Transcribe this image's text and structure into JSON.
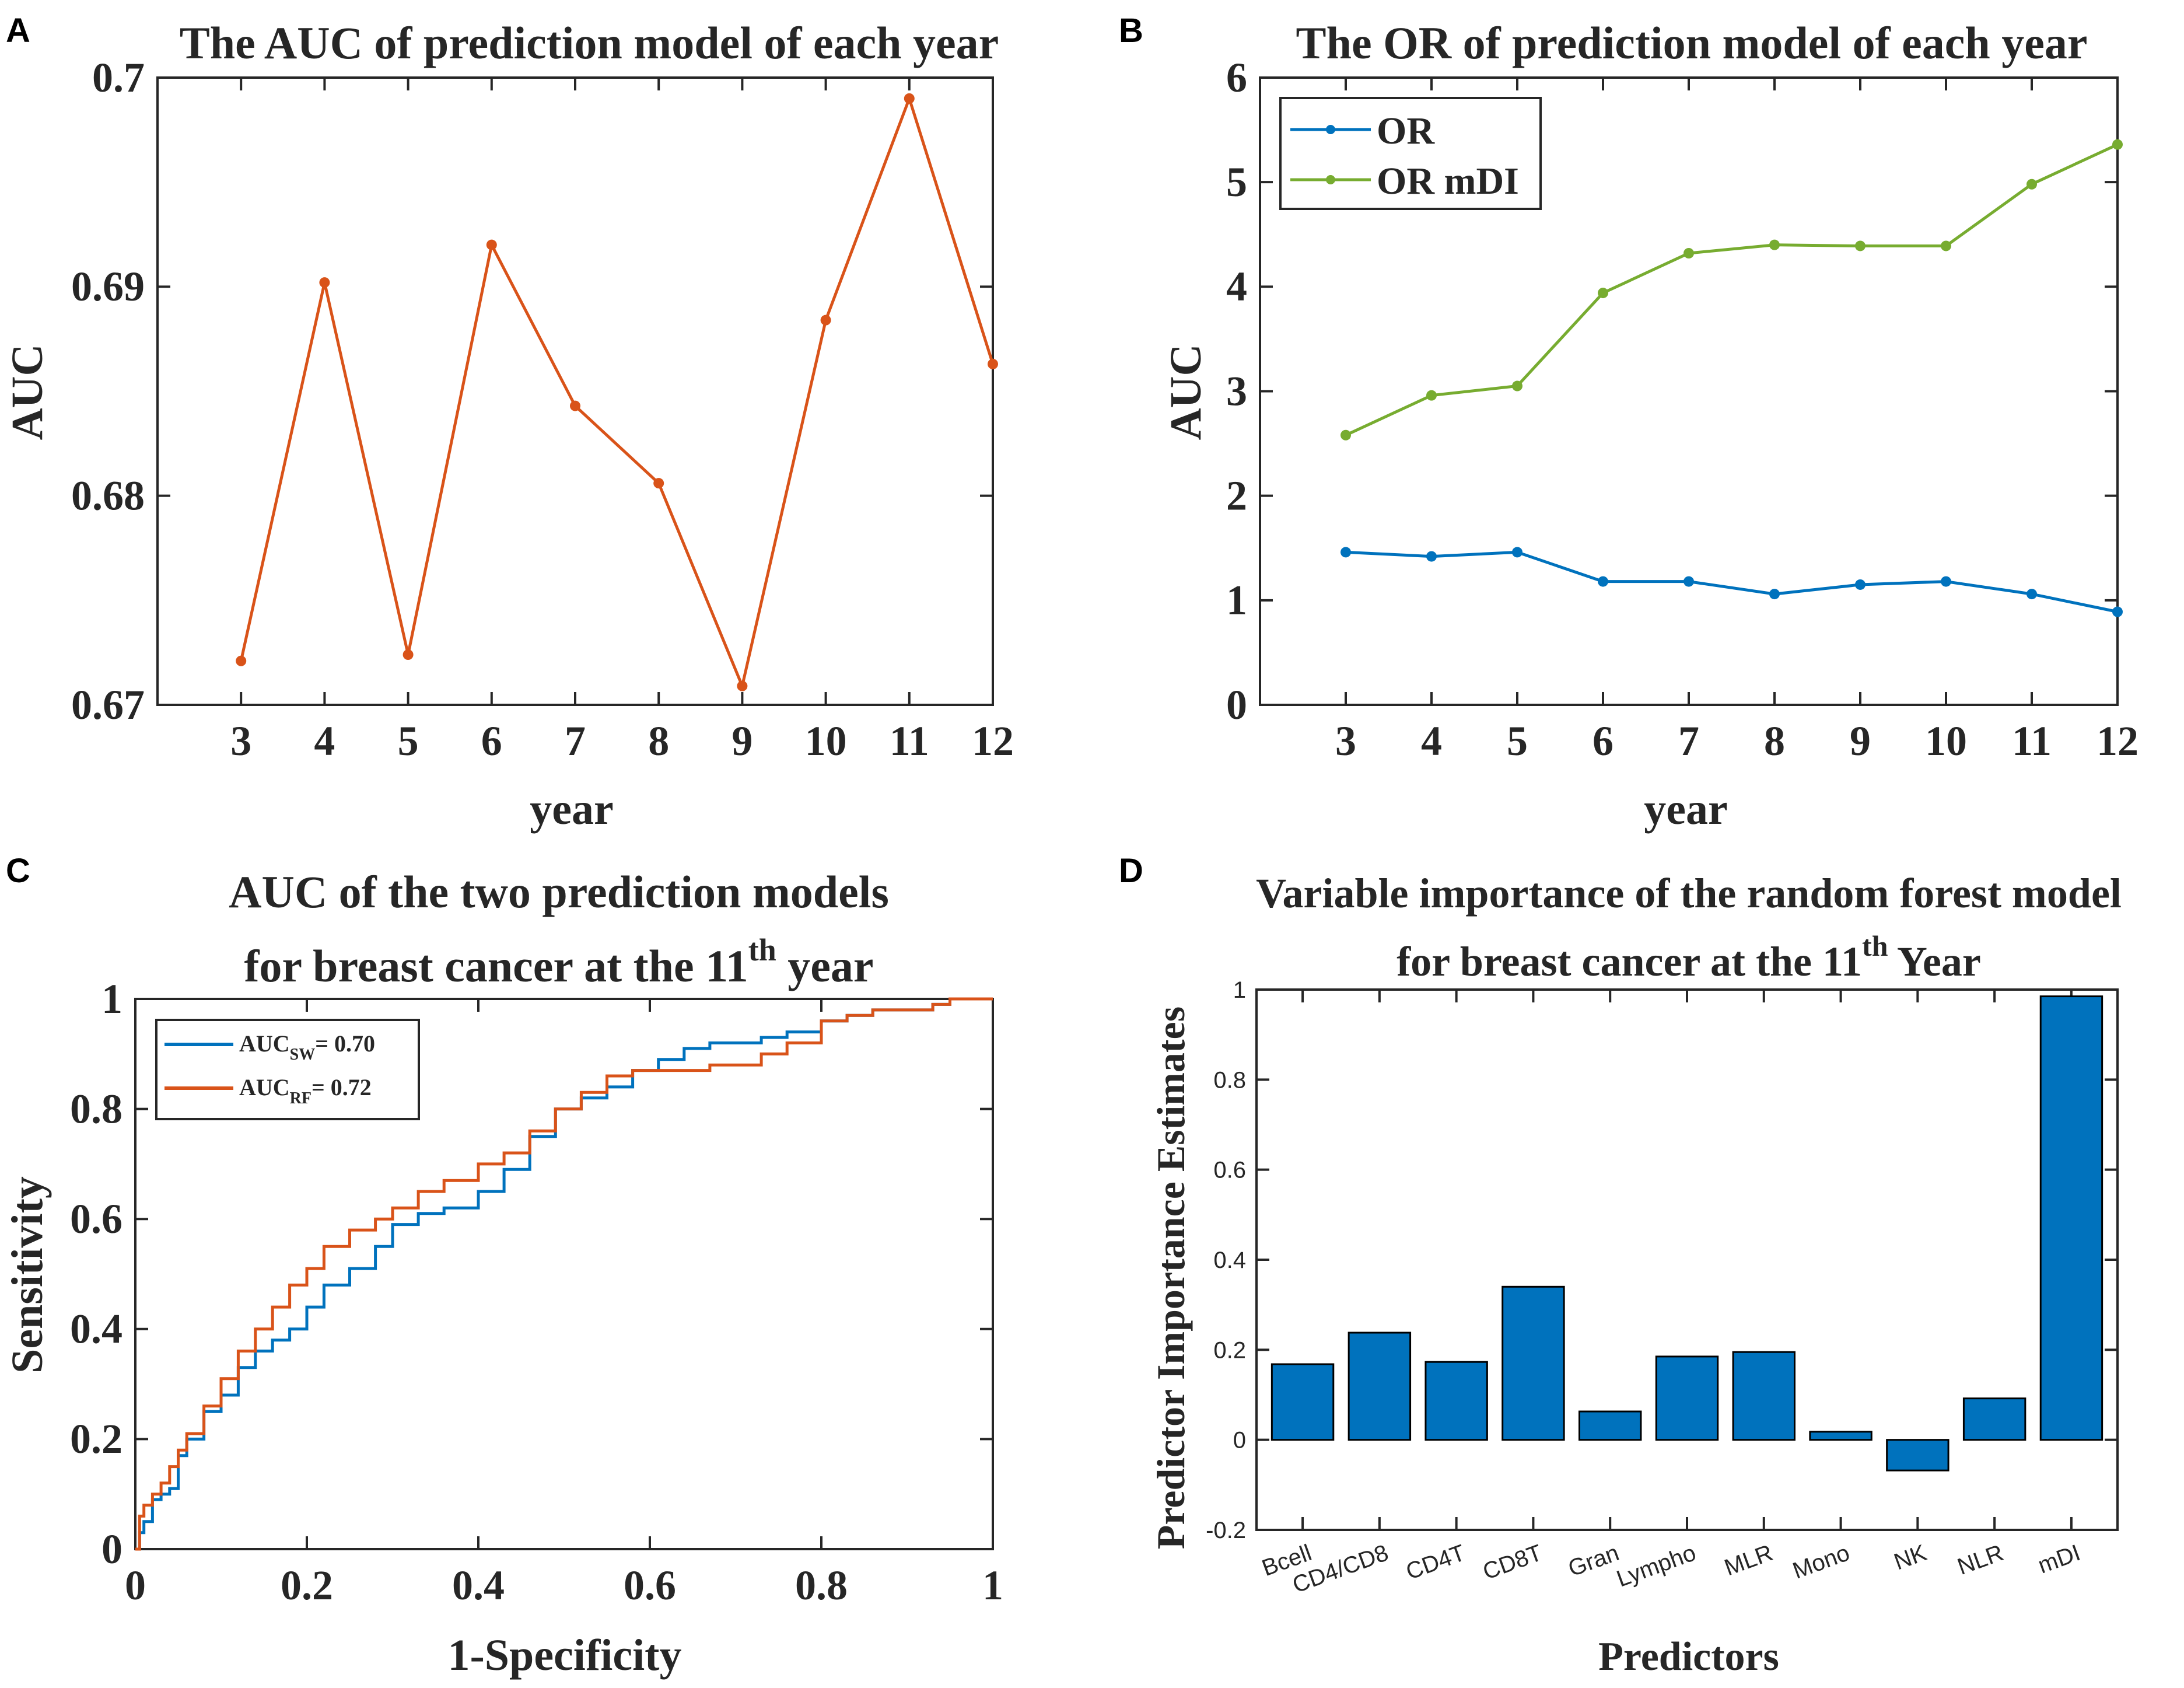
{
  "panels": {
    "A": {
      "label": "A",
      "chart_data": {
        "type": "line",
        "title": "The AUC of prediction model of each year",
        "xlabel": "year",
        "ylabel": "AUC",
        "x": [
          3,
          4,
          5,
          6,
          7,
          8,
          9,
          10,
          11,
          12
        ],
        "xticklabels": [
          "3",
          "4",
          "5",
          "6",
          "7",
          "8",
          "9",
          "10",
          "11",
          "12"
        ],
        "xlim": [
          2,
          12
        ],
        "ylim": [
          0.67,
          0.7
        ],
        "yticks": [
          0.67,
          0.68,
          0.69,
          0.7
        ],
        "yticklabels": [
          "0.67",
          "0.68",
          "0.69",
          "0.7"
        ],
        "grid": false,
        "series": [
          {
            "name": "AUC",
            "color": "#d95319",
            "values": [
              0.6721,
              0.6902,
              0.6724,
              0.692,
              0.6843,
              0.6806,
              0.6709,
              0.6884,
              0.699,
              0.6863
            ]
          }
        ]
      }
    },
    "B": {
      "label": "B",
      "chart_data": {
        "type": "line",
        "title": "The OR of prediction model of each year",
        "xlabel": "year",
        "ylabel": "AUC",
        "x": [
          3,
          4,
          5,
          6,
          7,
          8,
          9,
          10,
          11,
          12
        ],
        "xticklabels": [
          "3",
          "4",
          "5",
          "6",
          "7",
          "8",
          "9",
          "10",
          "11",
          "12"
        ],
        "xlim": [
          2,
          12
        ],
        "ylim": [
          0,
          6
        ],
        "yticks": [
          0,
          1,
          2,
          3,
          4,
          5,
          6
        ],
        "yticklabels": [
          "0",
          "1",
          "2",
          "3",
          "4",
          "5",
          "6"
        ],
        "grid": false,
        "legend_position": "top-left",
        "series": [
          {
            "name": "OR",
            "color": "#0072bd",
            "values": [
              1.46,
              1.42,
              1.46,
              1.18,
              1.18,
              1.06,
              1.15,
              1.18,
              1.06,
              0.89
            ]
          },
          {
            "name": "OR mDI",
            "color": "#77ac30",
            "values": [
              2.58,
              2.96,
              3.05,
              3.94,
              4.32,
              4.4,
              4.39,
              4.39,
              4.98,
              5.36
            ]
          }
        ]
      }
    },
    "C": {
      "label": "C",
      "chart_data": {
        "type": "line",
        "title_line1": "AUC of the two prediction models",
        "title_line2_pre": "for breast cancer at the 11",
        "title_line2_sup": "th",
        "title_line2_post": "year",
        "xlabel": "1-Specificity",
        "ylabel": "Sensitivity",
        "xlim": [
          0,
          1
        ],
        "ylim": [
          0,
          1
        ],
        "xticks": [
          0,
          0.2,
          0.4,
          0.6,
          0.8,
          1
        ],
        "xticklabels": [
          "0",
          "0.2",
          "0.4",
          "0.6",
          "0.8",
          "1"
        ],
        "yticks": [
          0,
          0.2,
          0.4,
          0.6,
          0.8,
          1
        ],
        "yticklabels": [
          "0",
          "0.2",
          "0.4",
          "0.6",
          "0.8",
          "1"
        ],
        "grid": false,
        "legend_position": "top-left",
        "series": [
          {
            "name": "AUC_SW = 0.70",
            "legend_main": "AUC",
            "legend_sub": "SW",
            "legend_tail": "= 0.70",
            "color": "#0072bd",
            "x": [
              0,
              0.005,
              0.01,
              0.02,
              0.03,
              0.04,
              0.05,
              0.06,
              0.08,
              0.1,
              0.12,
              0.14,
              0.16,
              0.18,
              0.2,
              0.22,
              0.25,
              0.28,
              0.3,
              0.33,
              0.36,
              0.4,
              0.43,
              0.46,
              0.49,
              0.52,
              0.55,
              0.58,
              0.61,
              0.64,
              0.67,
              0.7,
              0.73,
              0.76,
              0.8,
              0.83,
              0.86,
              0.9,
              0.93,
              0.95,
              1.0
            ],
            "y": [
              0,
              0.03,
              0.05,
              0.09,
              0.1,
              0.11,
              0.17,
              0.2,
              0.25,
              0.28,
              0.33,
              0.36,
              0.38,
              0.4,
              0.44,
              0.48,
              0.51,
              0.55,
              0.59,
              0.61,
              0.62,
              0.65,
              0.69,
              0.75,
              0.8,
              0.82,
              0.84,
              0.87,
              0.89,
              0.91,
              0.92,
              0.92,
              0.93,
              0.94,
              0.96,
              0.97,
              0.98,
              0.98,
              0.99,
              1.0,
              1.0
            ]
          },
          {
            "name": "AUC_RF = 0.72",
            "legend_main": "AUC",
            "legend_sub": "RF",
            "legend_tail": "= 0.72",
            "color": "#d95319",
            "x": [
              0,
              0.005,
              0.01,
              0.02,
              0.03,
              0.04,
              0.05,
              0.06,
              0.08,
              0.1,
              0.12,
              0.14,
              0.16,
              0.18,
              0.2,
              0.22,
              0.25,
              0.28,
              0.3,
              0.33,
              0.36,
              0.4,
              0.43,
              0.46,
              0.49,
              0.52,
              0.55,
              0.58,
              0.61,
              0.64,
              0.67,
              0.7,
              0.73,
              0.76,
              0.8,
              0.83,
              0.86,
              0.9,
              0.93,
              0.95,
              1.0
            ],
            "y": [
              0,
              0.06,
              0.08,
              0.1,
              0.12,
              0.15,
              0.18,
              0.21,
              0.26,
              0.31,
              0.36,
              0.4,
              0.44,
              0.48,
              0.51,
              0.55,
              0.58,
              0.6,
              0.62,
              0.65,
              0.67,
              0.7,
              0.72,
              0.76,
              0.8,
              0.83,
              0.86,
              0.87,
              0.87,
              0.87,
              0.88,
              0.88,
              0.9,
              0.92,
              0.96,
              0.97,
              0.98,
              0.98,
              0.99,
              1.0,
              1.0
            ]
          }
        ]
      }
    },
    "D": {
      "label": "D",
      "chart_data": {
        "type": "bar",
        "title_line1": "Variable importance of the random forest model",
        "title_line2_pre": "for breast cancer at the 11",
        "title_line2_sup": "th",
        "title_line2_post": "Year",
        "xlabel": "Predictors",
        "ylabel": "Predictor Importance Estimates",
        "categories": [
          "Bcell",
          "CD4/CD8",
          "CD4T",
          "CD8T",
          "Gran",
          "Lympho",
          "MLR",
          "Mono",
          "NK",
          "NLR",
          "mDI"
        ],
        "values": [
          0.168,
          0.238,
          0.173,
          0.34,
          0.063,
          0.185,
          0.195,
          0.018,
          -0.068,
          0.092,
          0.985
        ],
        "ylim": [
          -0.2,
          1
        ],
        "yticks": [
          -0.2,
          0,
          0.2,
          0.4,
          0.6,
          0.8,
          1
        ],
        "yticklabels": [
          "-0.2",
          "0",
          "0.2",
          "0.4",
          "0.6",
          "0.8",
          "1"
        ],
        "bar_color": "#0072bd",
        "grid": false
      }
    }
  }
}
